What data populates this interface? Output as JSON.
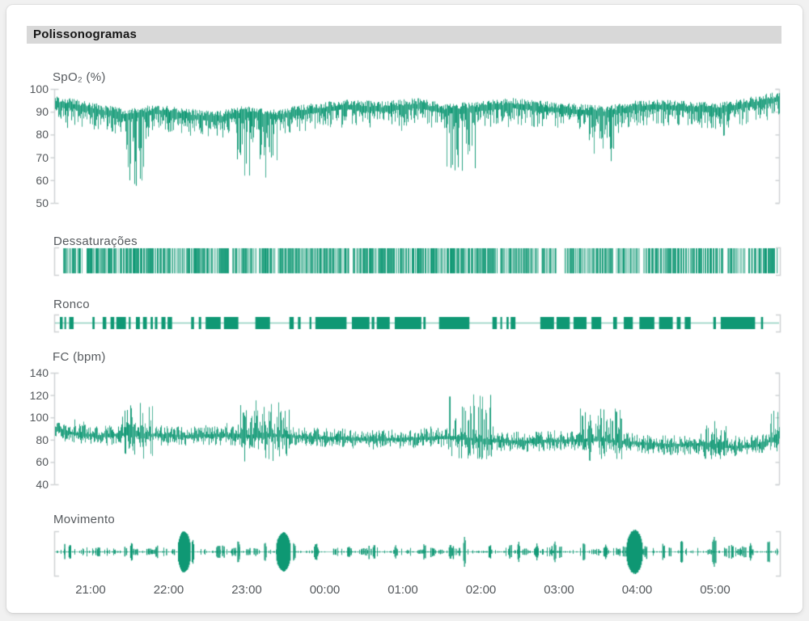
{
  "header": {
    "title": "Polissonogramas"
  },
  "theme": {
    "trace_color": "#0f9874",
    "axis_color": "#cfd2d4",
    "label_color": "#55595d",
    "tick_text_color": "#54585c",
    "header_bg": "#d8d8d8",
    "header_text": "#161616",
    "card_bg": "#ffffff",
    "page_bg": "#f1f1f1"
  },
  "time_axis": {
    "tick_labels": [
      "21:00",
      "22:00",
      "23:00",
      "00:00",
      "01:00",
      "02:00",
      "03:00",
      "04:00",
      "05:00"
    ]
  },
  "chart_data": [
    {
      "id": "spo2",
      "title": "SpO₂ (%)",
      "type": "line",
      "unit": "%",
      "ylim": [
        50,
        100
      ],
      "yticks": [
        100,
        90,
        80,
        70,
        60,
        50
      ],
      "baseline_points": [
        [
          0,
          93.5
        ],
        [
          0.03,
          92
        ],
        [
          0.06,
          90
        ],
        [
          0.1,
          87.5
        ],
        [
          0.14,
          90
        ],
        [
          0.18,
          88
        ],
        [
          0.22,
          86.5
        ],
        [
          0.26,
          89
        ],
        [
          0.3,
          87.5
        ],
        [
          0.35,
          90
        ],
        [
          0.4,
          92
        ],
        [
          0.45,
          91
        ],
        [
          0.5,
          92.5
        ],
        [
          0.54,
          90
        ],
        [
          0.58,
          91
        ],
        [
          0.63,
          92.5
        ],
        [
          0.68,
          91
        ],
        [
          0.72,
          90
        ],
        [
          0.76,
          89
        ],
        [
          0.8,
          91.5
        ],
        [
          0.84,
          92
        ],
        [
          0.88,
          91
        ],
        [
          0.92,
          90.5
        ],
        [
          0.96,
          93
        ],
        [
          1,
          95.5
        ]
      ],
      "desaturation_events": [
        {
          "start": 0.097,
          "end": 0.13,
          "nadir": 57
        },
        {
          "start": 0.251,
          "end": 0.307,
          "nadir": 60
        },
        {
          "start": 0.54,
          "end": 0.58,
          "nadir": 64
        },
        {
          "start": 0.732,
          "end": 0.782,
          "nadir": 68
        },
        {
          "start": 0.902,
          "end": 0.93,
          "nadir": 74
        }
      ]
    },
    {
      "id": "desaturations",
      "title": "Dessaturações",
      "type": "event_barcode",
      "coverage": 0.85,
      "gaps": [
        [
          0.688,
          0.7
        ],
        [
          0.805,
          0.81
        ],
        [
          0.922,
          0.928
        ],
        [
          0.953,
          0.957
        ]
      ]
    },
    {
      "id": "snoring",
      "title": "Ronco",
      "type": "event_blocks",
      "coverage": 0.55
    },
    {
      "id": "heart_rate",
      "title": "FC (bpm)",
      "type": "line",
      "unit": "bpm",
      "ylim": [
        40,
        140
      ],
      "yticks": [
        140,
        120,
        100,
        80,
        60,
        40
      ],
      "baseline_points": [
        [
          0,
          90
        ],
        [
          0.02,
          86
        ],
        [
          0.06,
          83
        ],
        [
          0.1,
          85
        ],
        [
          0.14,
          84
        ],
        [
          0.18,
          83
        ],
        [
          0.22,
          84
        ],
        [
          0.26,
          83
        ],
        [
          0.3,
          84
        ],
        [
          0.35,
          82
        ],
        [
          0.4,
          81
        ],
        [
          0.45,
          80
        ],
        [
          0.5,
          81
        ],
        [
          0.55,
          82
        ],
        [
          0.6,
          79
        ],
        [
          0.65,
          78
        ],
        [
          0.7,
          79
        ],
        [
          0.75,
          80
        ],
        [
          0.8,
          77
        ],
        [
          0.85,
          75
        ],
        [
          0.9,
          76
        ],
        [
          0.94,
          73
        ],
        [
          0.97,
          75
        ],
        [
          1,
          82
        ]
      ],
      "arousal_events": [
        {
          "start": 0.09,
          "end": 0.135,
          "peak": 113,
          "low": 62
        },
        {
          "start": 0.255,
          "end": 0.325,
          "peak": 116,
          "low": 57
        },
        {
          "start": 0.54,
          "end": 0.605,
          "peak": 122,
          "low": 58
        },
        {
          "start": 0.725,
          "end": 0.785,
          "peak": 108,
          "low": 60
        },
        {
          "start": 0.895,
          "end": 0.935,
          "peak": 104,
          "low": 58
        },
        {
          "start": 0.985,
          "end": 1.0,
          "peak": 107,
          "low": 68
        }
      ]
    },
    {
      "id": "movement",
      "title": "Movimento",
      "type": "spike_train",
      "major_events": [
        {
          "at": 0.178,
          "width": 8,
          "amp": 26
        },
        {
          "at": 0.315,
          "width": 9,
          "amp": 25
        },
        {
          "at": 0.8,
          "width": 10,
          "amp": 28
        }
      ],
      "minor_events": [
        {
          "at": 0.02,
          "width": 2,
          "amp": 14
        },
        {
          "at": 0.06,
          "width": 2,
          "amp": 9
        },
        {
          "at": 0.105,
          "width": 2,
          "amp": 12
        },
        {
          "at": 0.14,
          "width": 2,
          "amp": 10
        },
        {
          "at": 0.19,
          "width": 2,
          "amp": 17
        },
        {
          "at": 0.225,
          "width": 3,
          "amp": 12
        },
        {
          "at": 0.253,
          "width": 2,
          "amp": 19
        },
        {
          "at": 0.29,
          "width": 2,
          "amp": 12
        },
        {
          "at": 0.33,
          "width": 2,
          "amp": 14
        },
        {
          "at": 0.36,
          "width": 3,
          "amp": 13
        },
        {
          "at": 0.405,
          "width": 2,
          "amp": 10
        },
        {
          "at": 0.44,
          "width": 2,
          "amp": 11
        },
        {
          "at": 0.47,
          "width": 2,
          "amp": 9
        },
        {
          "at": 0.51,
          "width": 2,
          "amp": 12
        },
        {
          "at": 0.545,
          "width": 2,
          "amp": 10
        },
        {
          "at": 0.565,
          "width": 2,
          "amp": 21
        },
        {
          "at": 0.6,
          "width": 2,
          "amp": 12
        },
        {
          "at": 0.64,
          "width": 2,
          "amp": 13
        },
        {
          "at": 0.665,
          "width": 2,
          "amp": 11
        },
        {
          "at": 0.69,
          "width": 2,
          "amp": 15
        },
        {
          "at": 0.73,
          "width": 2,
          "amp": 12
        },
        {
          "at": 0.76,
          "width": 2,
          "amp": 10
        },
        {
          "at": 0.84,
          "width": 2,
          "amp": 12
        },
        {
          "at": 0.865,
          "width": 2,
          "amp": 16
        },
        {
          "at": 0.91,
          "width": 3,
          "amp": 19
        },
        {
          "at": 0.935,
          "width": 2,
          "amp": 10
        },
        {
          "at": 0.96,
          "width": 2,
          "amp": 13
        },
        {
          "at": 0.985,
          "width": 2,
          "amp": 15
        }
      ]
    }
  ]
}
